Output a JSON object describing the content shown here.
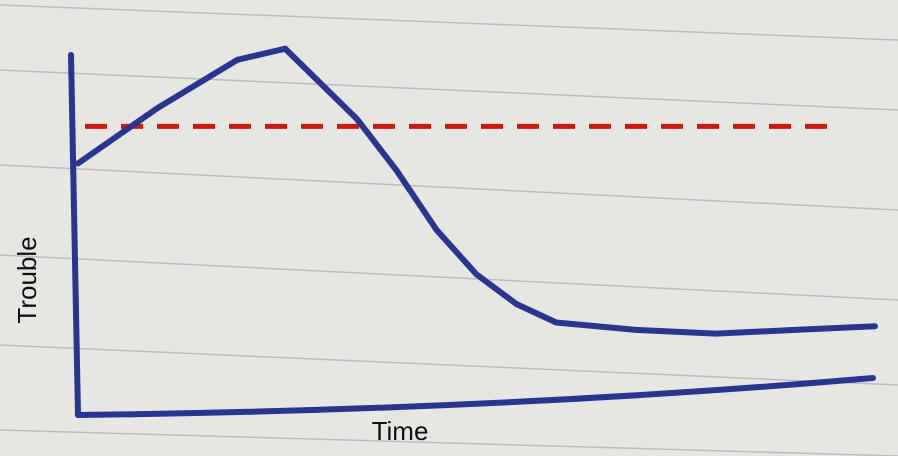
{
  "chart_data": {
    "type": "line",
    "x_label": "Time",
    "y_label": "Trouble",
    "x": [
      0,
      1,
      2,
      2.6,
      3.5,
      4,
      4.5,
      5,
      5.5,
      6,
      7,
      8,
      9,
      10
    ],
    "series": [
      {
        "color": "#2a3592",
        "values": [
          6.8,
          8.3,
          9.6,
          9.9,
          8.0,
          6.6,
          5.0,
          3.8,
          3.0,
          2.5,
          2.3,
          2.2,
          2.3,
          2.4
        ]
      }
    ],
    "threshold": {
      "value": 7.8,
      "color": "#cc1a12"
    },
    "xlim": [
      0,
      10
    ],
    "ylim": [
      0,
      10
    ]
  }
}
